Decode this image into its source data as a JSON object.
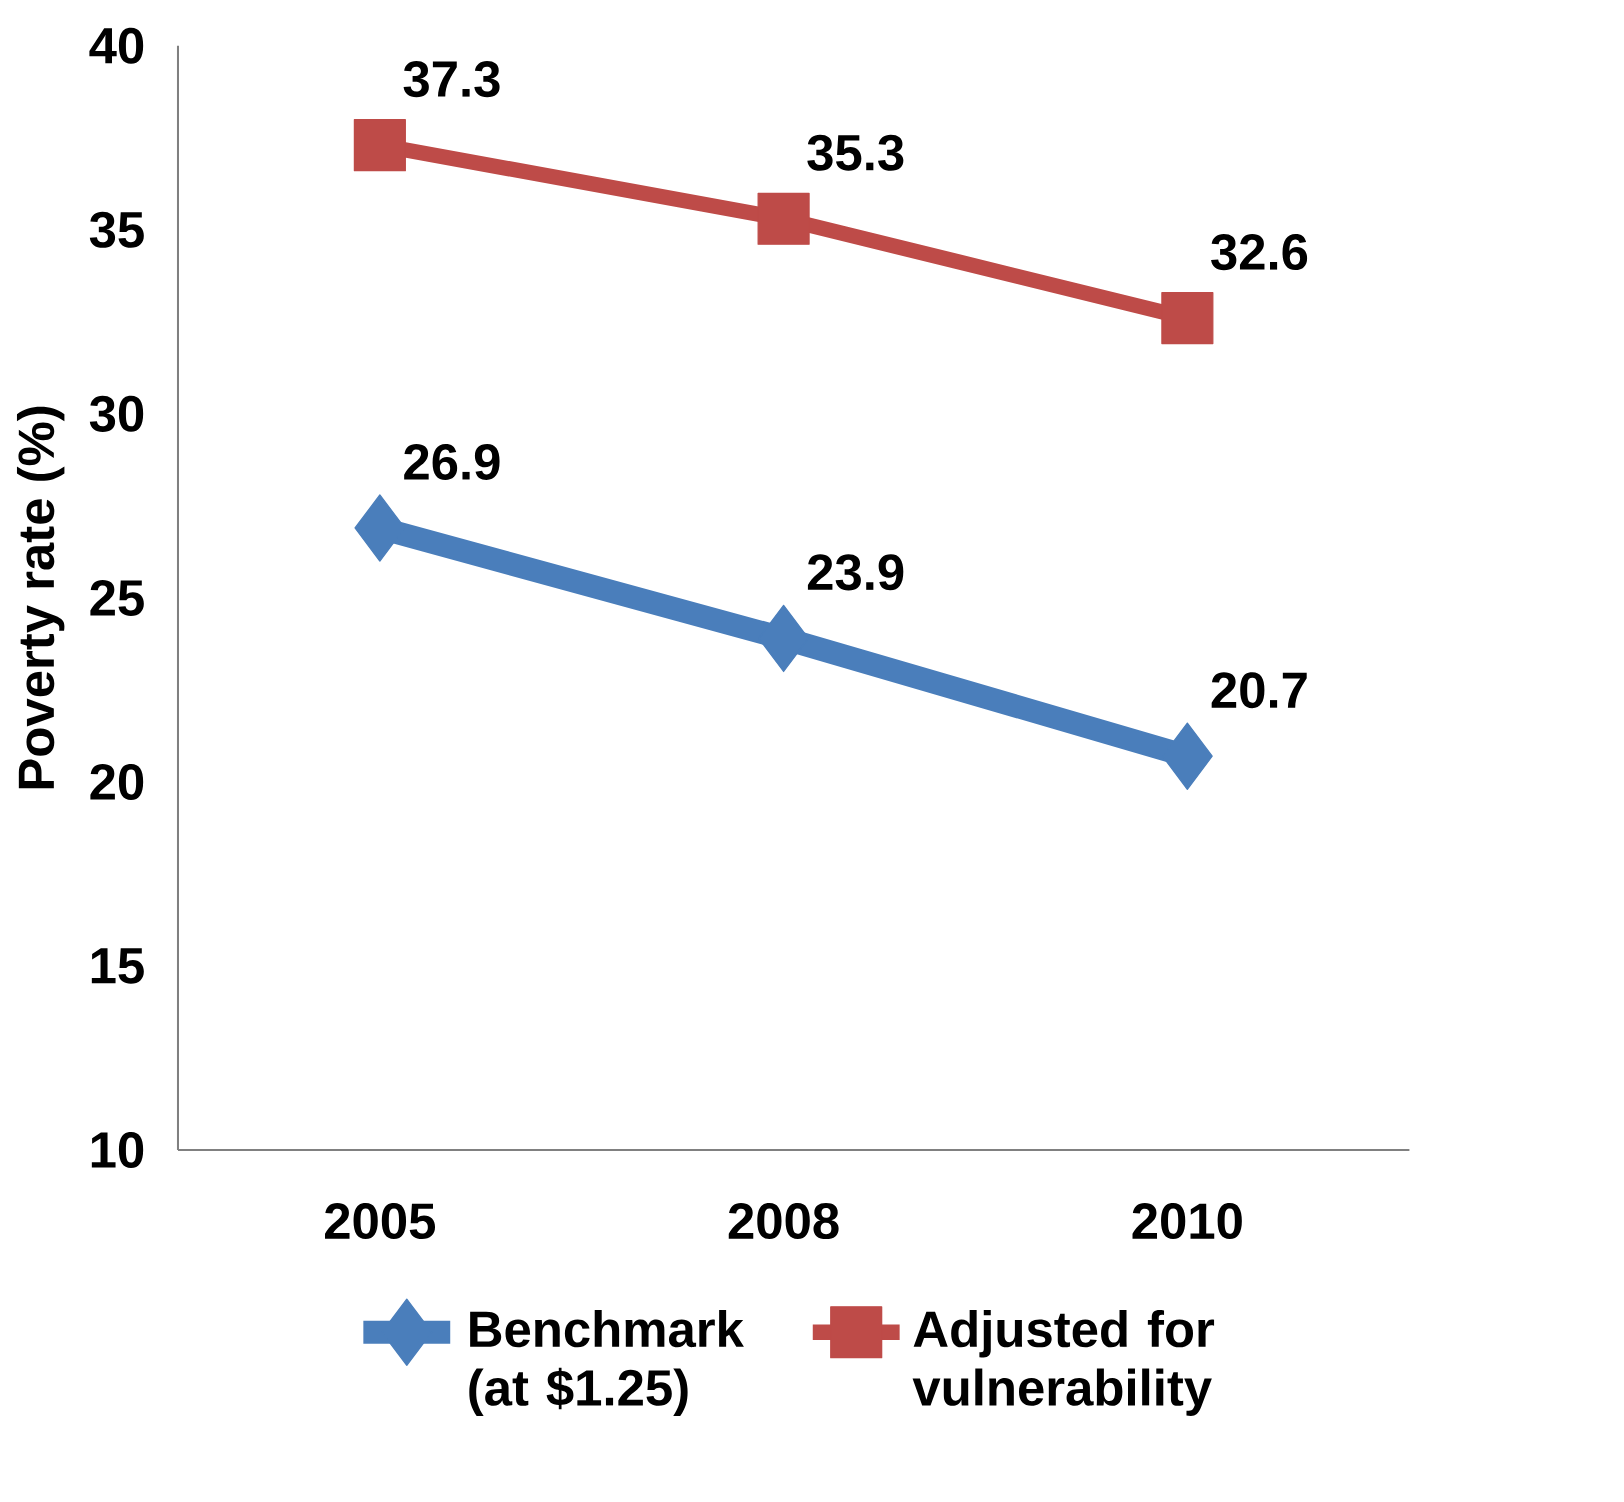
{
  "chart_data": {
    "type": "line",
    "ylabel": "Poverty rate (%)",
    "categories": [
      "2005",
      "2008",
      "2010"
    ],
    "series": [
      {
        "name": "Benchmark (at $1.25)",
        "color": "#4a7ebb",
        "marker": "diamond",
        "values": [
          26.9,
          23.9,
          20.7
        ]
      },
      {
        "name": "Adjusted for vulnerability",
        "color": "#be4b48",
        "marker": "square",
        "values": [
          37.3,
          35.3,
          32.6
        ]
      }
    ],
    "ylim": [
      10,
      40
    ],
    "yticks": [
      10,
      15,
      20,
      25,
      30,
      35,
      40
    ],
    "grid": false,
    "legend": "bottom",
    "data_labels": true
  }
}
